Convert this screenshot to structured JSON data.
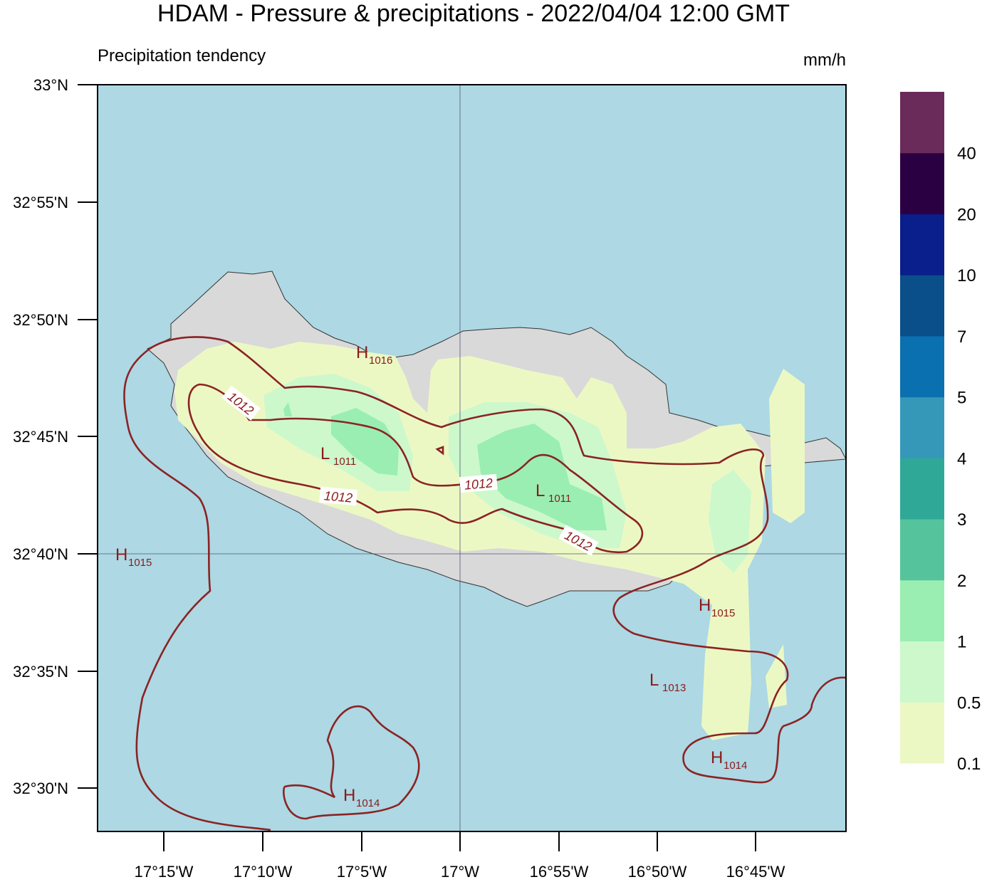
{
  "header": {
    "title": "HDAM - Pressure & precipitations  -  2022/04/04  12:00 GMT",
    "subtitle": "Precipitation tendency",
    "unit": "mm/h"
  },
  "axes": {
    "lat_labels": [
      "33°N",
      "32°55'N",
      "32°50'N",
      "32°45'N",
      "32°40'N",
      "32°35'N",
      "32°30'N"
    ],
    "lon_labels": [
      "17°15'W",
      "17°10'W",
      "17°5'W",
      "17°W",
      "16°55'W",
      "16°50'W",
      "16°45'W"
    ]
  },
  "legend": {
    "labels": [
      0.1,
      0.5,
      1,
      2,
      3,
      4,
      5,
      7,
      10,
      20,
      40
    ],
    "colors": [
      "#ecf8c4",
      "#ccf8cc",
      "#9aeeb2",
      "#55c49c",
      "#30a898",
      "#3598b8",
      "#0a70b0",
      "#0a4e8a",
      "#0a1e8c",
      "#2a0042",
      "#6a2a5a"
    ]
  },
  "pressure_labels": [
    {
      "letter": "H",
      "value": "1016"
    },
    {
      "letter": "L",
      "value": "1011"
    },
    {
      "letter": "L",
      "value": "1011"
    },
    {
      "letter": "H",
      "value": "1015"
    },
    {
      "letter": "H",
      "value": "1015"
    },
    {
      "letter": "L",
      "value": "1013"
    },
    {
      "letter": "H",
      "value": "1014"
    },
    {
      "letter": "H",
      "value": "1014"
    }
  ],
  "contour_labels": [
    "1012",
    "1012",
    "1012",
    "1012"
  ]
}
